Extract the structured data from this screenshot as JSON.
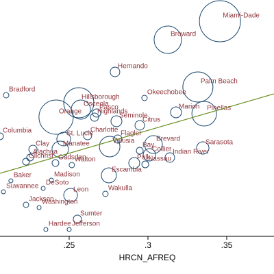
{
  "chart_data": {
    "type": "bubble",
    "xlabel": "HRCN_AFREQ",
    "xlim": [
      0.2061,
      0.38
    ],
    "ylim": [
      0,
      34.5
    ],
    "xticks": [
      {
        "value": 0.25,
        "label": ".25"
      },
      {
        "value": 0.3,
        "label": ".3"
      },
      {
        "value": 0.35,
        "label": ".35"
      }
    ],
    "marker_color": "#1a476f",
    "label_color": "#90353b",
    "labels": [
      "Miami-Dade",
      "Broward",
      "Hernando",
      "Bradford",
      "Palm Beach",
      "Okeechobee",
      "Hillsborough",
      "Orange",
      "Osceola",
      "Pasco",
      "Highlands",
      "Seminole",
      "Citrus",
      "Marion",
      "Pinellas",
      "Columbia",
      "Flagler",
      "Brevard",
      "Sarasota",
      "Clay",
      "Collier",
      "Bay",
      "Indian River",
      "Polk",
      "Nassau",
      "Alachua",
      "Gilchrist",
      "Manatee",
      "Volusia",
      "St. Lucie",
      "Charlotte",
      "Gadsden",
      "Walton",
      "Escambia",
      "Madison",
      "Baker",
      "DeSoto",
      "Suwannee",
      "Leon",
      "Wakulla",
      "Jackson",
      "Washington",
      "Sumter",
      "Hardee",
      "Jefferson"
    ],
    "x": [
      0.3457,
      0.3126,
      0.2791,
      0.21,
      0.3317,
      0.2978,
      0.2561,
      0.2417,
      0.2574,
      0.2674,
      0.2661,
      0.28,
      0.2948,
      0.3178,
      0.3357,
      0.2061,
      0.2809,
      0.3035,
      0.3348,
      0.227,
      0.3009,
      0.2948,
      0.3139,
      0.2913,
      0.2983,
      0.2252,
      0.2226,
      0.2443,
      0.2757,
      0.2465,
      0.2617,
      0.2413,
      0.2517,
      0.2752,
      0.2387,
      0.213,
      0.2335,
      0.2083,
      0.2509,
      0.273,
      0.2226,
      0.2309,
      0.2552,
      0.2352,
      0.25
    ],
    "y": [
      31.4,
      28.7,
      24,
      20.6,
      21.8,
      20.2,
      19.5,
      17.4,
      18.5,
      18,
      17.4,
      16.8,
      16.2,
      18.1,
      17.9,
      14.6,
      14.2,
      13.4,
      12.9,
      12.7,
      11.9,
      12.5,
      11.5,
      10.7,
      10.5,
      11.5,
      10.9,
      12.7,
      13.1,
      14.2,
      14.7,
      10.7,
      10.4,
      8.9,
      8.2,
      8.1,
      7,
      6.5,
      6,
      6.2,
      4.6,
      4.2,
      2.5,
      1,
      1
    ],
    "sizes": [
      30,
      20,
      7,
      4,
      22,
      4,
      22,
      25,
      14,
      6,
      6,
      8,
      7,
      8,
      18,
      5,
      6,
      13,
      9,
      6,
      9,
      5,
      7,
      8,
      5,
      5,
      5,
      12,
      15,
      10,
      6,
      5,
      4,
      11,
      3,
      3,
      3,
      3,
      10,
      4,
      4,
      3,
      6,
      3,
      3
    ],
    "fit_line": {
      "x": [
        0.2061,
        0.38
      ],
      "y": [
        9.2,
        20.8
      ],
      "color": "#6b8e23"
    }
  }
}
